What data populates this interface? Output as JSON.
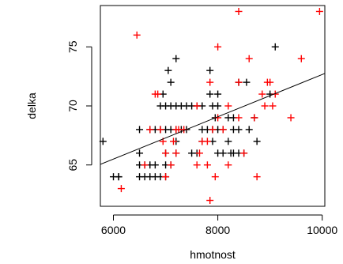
{
  "chart_data": {
    "type": "scatter",
    "xlabel": "hmotnost",
    "ylabel": "delka",
    "xlim": [
      5750,
      10050
    ],
    "ylim": [
      61.5,
      78.5
    ],
    "xticks": [
      6000,
      8000,
      10000
    ],
    "yticks": [
      65,
      70,
      75
    ],
    "xtick_labels": [
      "6000",
      "8000",
      "10000"
    ],
    "ytick_labels": [
      "65",
      "70",
      "75"
    ],
    "marker": "+",
    "grid": false,
    "legend": "none",
    "series": [
      {
        "color": "#000000",
        "points": [
          [
            5800,
            67
          ],
          [
            6000,
            64
          ],
          [
            6100,
            64
          ],
          [
            6100,
            64
          ],
          [
            6500,
            68
          ],
          [
            6500,
            66
          ],
          [
            6500,
            65
          ],
          [
            6500,
            64
          ],
          [
            6600,
            65
          ],
          [
            6600,
            64
          ],
          [
            6700,
            68
          ],
          [
            6700,
            65
          ],
          [
            6700,
            64
          ],
          [
            6800,
            68
          ],
          [
            6800,
            65
          ],
          [
            6800,
            64
          ],
          [
            6900,
            70
          ],
          [
            6900,
            68
          ],
          [
            6900,
            64
          ],
          [
            6950,
            71
          ],
          [
            7000,
            70
          ],
          [
            7000,
            68
          ],
          [
            7000,
            66
          ],
          [
            7000,
            65
          ],
          [
            7000,
            64
          ],
          [
            7050,
            73
          ],
          [
            7100,
            72
          ],
          [
            7100,
            70
          ],
          [
            7100,
            68
          ],
          [
            7100,
            65
          ],
          [
            7200,
            74
          ],
          [
            7200,
            70
          ],
          [
            7200,
            68
          ],
          [
            7200,
            67
          ],
          [
            7200,
            66
          ],
          [
            7300,
            70
          ],
          [
            7300,
            68
          ],
          [
            7400,
            70
          ],
          [
            7400,
            68
          ],
          [
            7500,
            70
          ],
          [
            7500,
            66
          ],
          [
            7600,
            70
          ],
          [
            7600,
            66
          ],
          [
            7700,
            70
          ],
          [
            7700,
            68
          ],
          [
            7700,
            67
          ],
          [
            7800,
            68
          ],
          [
            7850,
            73
          ],
          [
            7850,
            71
          ],
          [
            7900,
            70
          ],
          [
            7900,
            68
          ],
          [
            7900,
            67
          ],
          [
            7950,
            69
          ],
          [
            8000,
            71
          ],
          [
            8000,
            70
          ],
          [
            8000,
            68
          ],
          [
            8000,
            66
          ],
          [
            8100,
            68
          ],
          [
            8100,
            66
          ],
          [
            8200,
            69
          ],
          [
            8200,
            67
          ],
          [
            8250,
            66
          ],
          [
            8300,
            69
          ],
          [
            8300,
            68
          ],
          [
            8300,
            66
          ],
          [
            8400,
            72
          ],
          [
            8400,
            68
          ],
          [
            8400,
            66
          ],
          [
            8500,
            66
          ],
          [
            8550,
            72
          ],
          [
            8600,
            68
          ],
          [
            8700,
            69
          ],
          [
            8750,
            67
          ],
          [
            9000,
            71
          ],
          [
            9100,
            75
          ]
        ]
      },
      {
        "color": "#ff0000",
        "points": [
          [
            6150,
            63
          ],
          [
            6450,
            76
          ],
          [
            6600,
            65
          ],
          [
            6700,
            68
          ],
          [
            6800,
            71
          ],
          [
            6850,
            71
          ],
          [
            6900,
            68
          ],
          [
            6950,
            67
          ],
          [
            7000,
            66
          ],
          [
            7000,
            64
          ],
          [
            7100,
            65
          ],
          [
            7150,
            67
          ],
          [
            7200,
            68
          ],
          [
            7200,
            66
          ],
          [
            7250,
            68
          ],
          [
            7350,
            68
          ],
          [
            7600,
            70
          ],
          [
            7600,
            65
          ],
          [
            7650,
            66
          ],
          [
            7700,
            67
          ],
          [
            7800,
            67
          ],
          [
            7800,
            65
          ],
          [
            7850,
            72
          ],
          [
            7850,
            62
          ],
          [
            7900,
            68
          ],
          [
            7950,
            64
          ],
          [
            8000,
            75
          ],
          [
            8000,
            69
          ],
          [
            8100,
            68
          ],
          [
            8200,
            70
          ],
          [
            8200,
            65
          ],
          [
            8400,
            78
          ],
          [
            8400,
            72
          ],
          [
            8400,
            69
          ],
          [
            8500,
            66
          ],
          [
            8600,
            74
          ],
          [
            8700,
            69
          ],
          [
            8750,
            64
          ],
          [
            8850,
            71
          ],
          [
            8900,
            70
          ],
          [
            8950,
            72
          ],
          [
            9000,
            72
          ],
          [
            9050,
            70
          ],
          [
            9100,
            71
          ],
          [
            9400,
            69
          ],
          [
            9600,
            74
          ],
          [
            9950,
            78
          ]
        ]
      }
    ],
    "regression_line": {
      "color": "#000000",
      "from": [
        5750,
        65.05
      ],
      "to": [
        10050,
        72.75
      ]
    }
  }
}
